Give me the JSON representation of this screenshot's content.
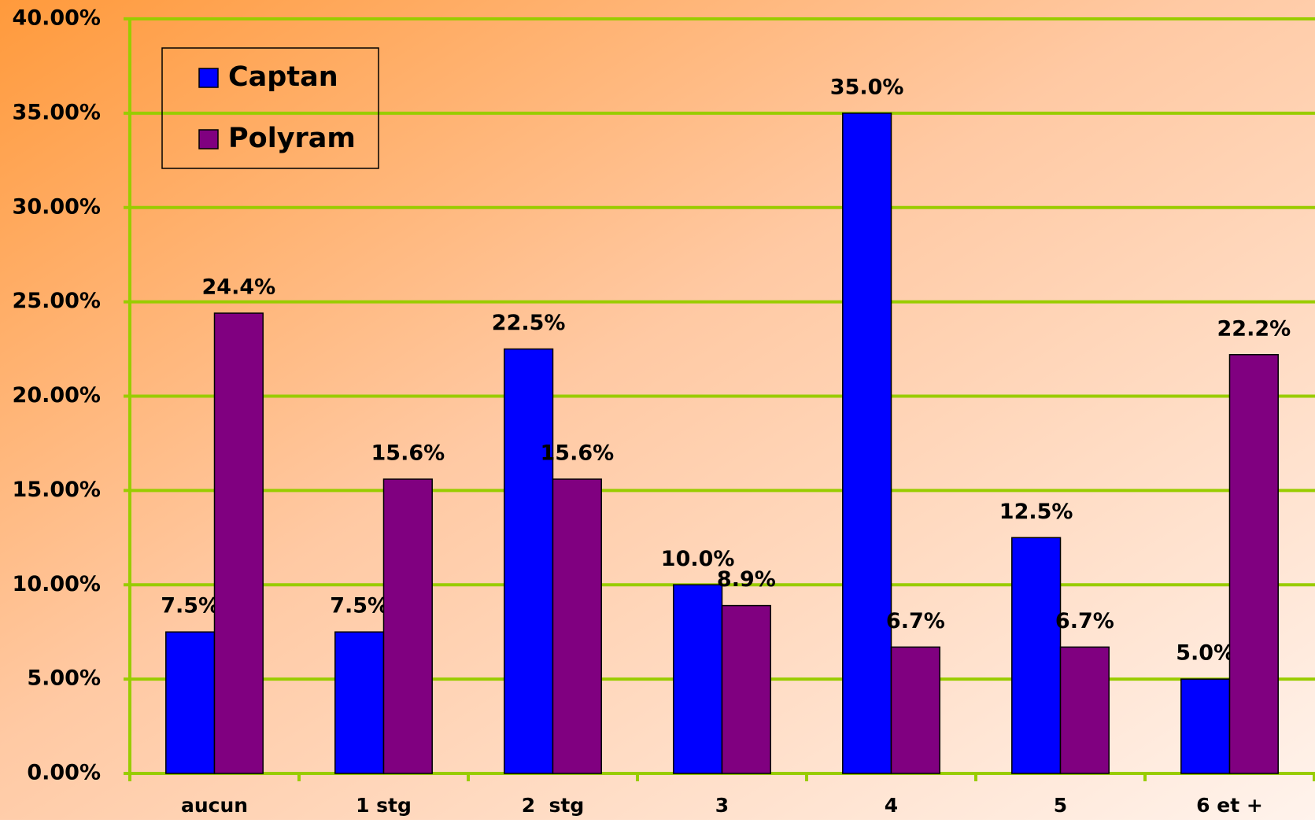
{
  "chart_data": {
    "type": "bar",
    "categories": [
      "aucun",
      "1 stg",
      "2  stg",
      "3",
      "4",
      "5",
      "6 et +"
    ],
    "series": [
      {
        "name": "Captan",
        "color": "#0000ff",
        "values": [
          7.5,
          7.5,
          22.5,
          10.0,
          35.0,
          12.5,
          5.0
        ],
        "value_labels": [
          "7.5%",
          "7.5%",
          "22.5%",
          "10.0%",
          "35.0%",
          "12.5%",
          "5.0%"
        ]
      },
      {
        "name": "Polyram",
        "color": "#800080",
        "values": [
          24.4,
          15.6,
          15.6,
          8.9,
          6.7,
          6.7,
          22.2
        ],
        "value_labels": [
          "24.4%",
          "15.6%",
          "15.6%",
          "8.9%",
          "6.7%",
          "6.7%",
          "22.2%"
        ]
      }
    ],
    "ylim": [
      0,
      40
    ],
    "yticks": [
      {
        "value": 0,
        "label": "0.00%"
      },
      {
        "value": 5,
        "label": "5.00%"
      },
      {
        "value": 10,
        "label": "10.00%"
      },
      {
        "value": 15,
        "label": "15.00%"
      },
      {
        "value": 20,
        "label": "20.00%"
      },
      {
        "value": 25,
        "label": "25.00%"
      },
      {
        "value": 30,
        "label": "30.00%"
      },
      {
        "value": 35,
        "label": "35.00%"
      },
      {
        "value": 40,
        "label": "40.00%"
      }
    ],
    "grid": true,
    "grid_color": "#99cc00",
    "legend": "top-left"
  }
}
